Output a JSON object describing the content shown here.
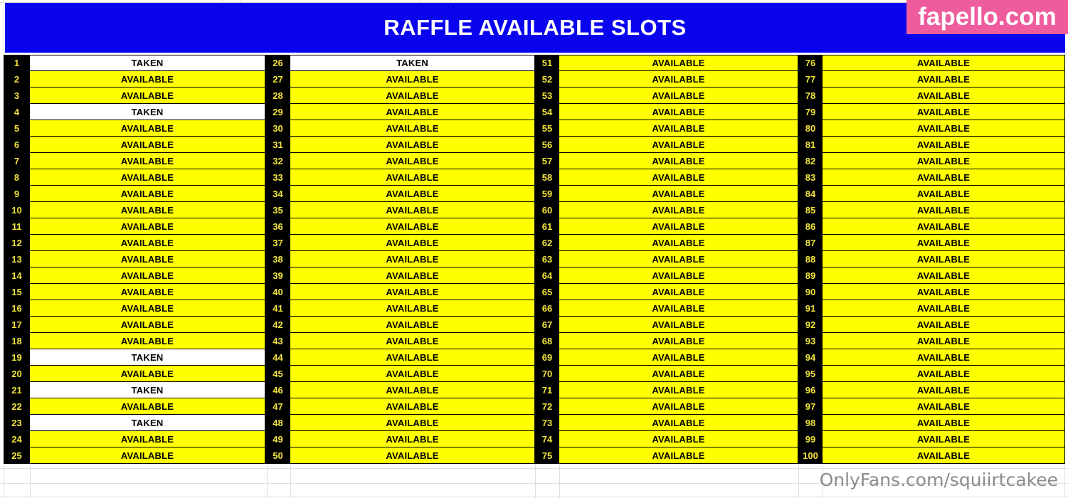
{
  "header": {
    "title": "RAFFLE AVAILABLE SLOTS"
  },
  "branding": {
    "logo_text": "fapello.com",
    "watermark_text": "OnlyFans.com/squiirtcakee"
  },
  "colors": {
    "header_bg": "#0a03ee",
    "logo_bg": "#ee5c9c",
    "available_bg": "#ffff00",
    "taken_bg": "#ffffff",
    "number_bg": "#000000",
    "number_text": "#f0e33c",
    "watermark_text": "#8c8c8c"
  },
  "table": {
    "columns": [
      {
        "start": 1,
        "end": 25
      },
      {
        "start": 26,
        "end": 50
      },
      {
        "start": 51,
        "end": 75
      },
      {
        "start": 76,
        "end": 100
      }
    ],
    "slots": [
      {
        "n": 1,
        "status": "TAKEN"
      },
      {
        "n": 2,
        "status": "AVAILABLE"
      },
      {
        "n": 3,
        "status": "AVAILABLE"
      },
      {
        "n": 4,
        "status": "TAKEN"
      },
      {
        "n": 5,
        "status": "AVAILABLE"
      },
      {
        "n": 6,
        "status": "AVAILABLE"
      },
      {
        "n": 7,
        "status": "AVAILABLE"
      },
      {
        "n": 8,
        "status": "AVAILABLE"
      },
      {
        "n": 9,
        "status": "AVAILABLE"
      },
      {
        "n": 10,
        "status": "AVAILABLE"
      },
      {
        "n": 11,
        "status": "AVAILABLE"
      },
      {
        "n": 12,
        "status": "AVAILABLE"
      },
      {
        "n": 13,
        "status": "AVAILABLE"
      },
      {
        "n": 14,
        "status": "AVAILABLE"
      },
      {
        "n": 15,
        "status": "AVAILABLE"
      },
      {
        "n": 16,
        "status": "AVAILABLE"
      },
      {
        "n": 17,
        "status": "AVAILABLE"
      },
      {
        "n": 18,
        "status": "AVAILABLE"
      },
      {
        "n": 19,
        "status": "TAKEN"
      },
      {
        "n": 20,
        "status": "AVAILABLE"
      },
      {
        "n": 21,
        "status": "TAKEN"
      },
      {
        "n": 22,
        "status": "AVAILABLE"
      },
      {
        "n": 23,
        "status": "TAKEN"
      },
      {
        "n": 24,
        "status": "AVAILABLE"
      },
      {
        "n": 25,
        "status": "AVAILABLE"
      },
      {
        "n": 26,
        "status": "TAKEN"
      },
      {
        "n": 27,
        "status": "AVAILABLE"
      },
      {
        "n": 28,
        "status": "AVAILABLE"
      },
      {
        "n": 29,
        "status": "AVAILABLE"
      },
      {
        "n": 30,
        "status": "AVAILABLE"
      },
      {
        "n": 31,
        "status": "AVAILABLE"
      },
      {
        "n": 32,
        "status": "AVAILABLE"
      },
      {
        "n": 33,
        "status": "AVAILABLE"
      },
      {
        "n": 34,
        "status": "AVAILABLE"
      },
      {
        "n": 35,
        "status": "AVAILABLE"
      },
      {
        "n": 36,
        "status": "AVAILABLE"
      },
      {
        "n": 37,
        "status": "AVAILABLE"
      },
      {
        "n": 38,
        "status": "AVAILABLE"
      },
      {
        "n": 39,
        "status": "AVAILABLE"
      },
      {
        "n": 40,
        "status": "AVAILABLE"
      },
      {
        "n": 41,
        "status": "AVAILABLE"
      },
      {
        "n": 42,
        "status": "AVAILABLE"
      },
      {
        "n": 43,
        "status": "AVAILABLE"
      },
      {
        "n": 44,
        "status": "AVAILABLE"
      },
      {
        "n": 45,
        "status": "AVAILABLE"
      },
      {
        "n": 46,
        "status": "AVAILABLE"
      },
      {
        "n": 47,
        "status": "AVAILABLE"
      },
      {
        "n": 48,
        "status": "AVAILABLE"
      },
      {
        "n": 49,
        "status": "AVAILABLE"
      },
      {
        "n": 50,
        "status": "AVAILABLE"
      },
      {
        "n": 51,
        "status": "AVAILABLE"
      },
      {
        "n": 52,
        "status": "AVAILABLE"
      },
      {
        "n": 53,
        "status": "AVAILABLE"
      },
      {
        "n": 54,
        "status": "AVAILABLE"
      },
      {
        "n": 55,
        "status": "AVAILABLE"
      },
      {
        "n": 56,
        "status": "AVAILABLE"
      },
      {
        "n": 57,
        "status": "AVAILABLE"
      },
      {
        "n": 58,
        "status": "AVAILABLE"
      },
      {
        "n": 59,
        "status": "AVAILABLE"
      },
      {
        "n": 60,
        "status": "AVAILABLE"
      },
      {
        "n": 61,
        "status": "AVAILABLE"
      },
      {
        "n": 62,
        "status": "AVAILABLE"
      },
      {
        "n": 63,
        "status": "AVAILABLE"
      },
      {
        "n": 64,
        "status": "AVAILABLE"
      },
      {
        "n": 65,
        "status": "AVAILABLE"
      },
      {
        "n": 66,
        "status": "AVAILABLE"
      },
      {
        "n": 67,
        "status": "AVAILABLE"
      },
      {
        "n": 68,
        "status": "AVAILABLE"
      },
      {
        "n": 69,
        "status": "AVAILABLE"
      },
      {
        "n": 70,
        "status": "AVAILABLE"
      },
      {
        "n": 71,
        "status": "AVAILABLE"
      },
      {
        "n": 72,
        "status": "AVAILABLE"
      },
      {
        "n": 73,
        "status": "AVAILABLE"
      },
      {
        "n": 74,
        "status": "AVAILABLE"
      },
      {
        "n": 75,
        "status": "AVAILABLE"
      },
      {
        "n": 76,
        "status": "AVAILABLE"
      },
      {
        "n": 77,
        "status": "AVAILABLE"
      },
      {
        "n": 78,
        "status": "AVAILABLE"
      },
      {
        "n": 79,
        "status": "AVAILABLE"
      },
      {
        "n": 80,
        "status": "AVAILABLE"
      },
      {
        "n": 81,
        "status": "AVAILABLE"
      },
      {
        "n": 82,
        "status": "AVAILABLE"
      },
      {
        "n": 83,
        "status": "AVAILABLE"
      },
      {
        "n": 84,
        "status": "AVAILABLE"
      },
      {
        "n": 85,
        "status": "AVAILABLE"
      },
      {
        "n": 86,
        "status": "AVAILABLE"
      },
      {
        "n": 87,
        "status": "AVAILABLE"
      },
      {
        "n": 88,
        "status": "AVAILABLE"
      },
      {
        "n": 89,
        "status": "AVAILABLE"
      },
      {
        "n": 90,
        "status": "AVAILABLE"
      },
      {
        "n": 91,
        "status": "AVAILABLE"
      },
      {
        "n": 92,
        "status": "AVAILABLE"
      },
      {
        "n": 93,
        "status": "AVAILABLE"
      },
      {
        "n": 94,
        "status": "AVAILABLE"
      },
      {
        "n": 95,
        "status": "AVAILABLE"
      },
      {
        "n": 96,
        "status": "AVAILABLE"
      },
      {
        "n": 97,
        "status": "AVAILABLE"
      },
      {
        "n": 98,
        "status": "AVAILABLE"
      },
      {
        "n": 99,
        "status": "AVAILABLE"
      },
      {
        "n": 100,
        "status": "AVAILABLE"
      }
    ]
  }
}
